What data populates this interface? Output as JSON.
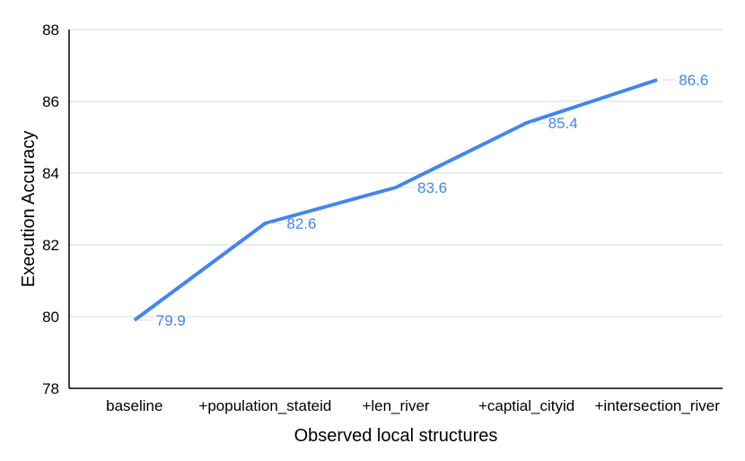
{
  "chart_data": {
    "type": "line",
    "categories": [
      "baseline",
      "+population_stateid",
      "+len_river",
      "+captial_cityid",
      "+intersection_river"
    ],
    "series": [
      {
        "values": [
          79.9,
          82.6,
          83.6,
          85.4,
          86.6
        ]
      }
    ],
    "data_labels": [
      "79.9",
      "82.6",
      "83.6",
      "85.4",
      "86.6"
    ],
    "xlabel": "Observed local structures",
    "ylabel": "Execution Accuracy",
    "ylim": [
      78,
      88
    ],
    "yticks": [
      78,
      80,
      82,
      84,
      86,
      88
    ],
    "grid": "horizontal",
    "legend": "none",
    "colors": {
      "line": "#4285f4",
      "data_label": "#4285f4",
      "gridline": "#d9d9d9",
      "leader_line": "#dadce0",
      "axis": "#000000",
      "background": "#ffffff"
    }
  }
}
